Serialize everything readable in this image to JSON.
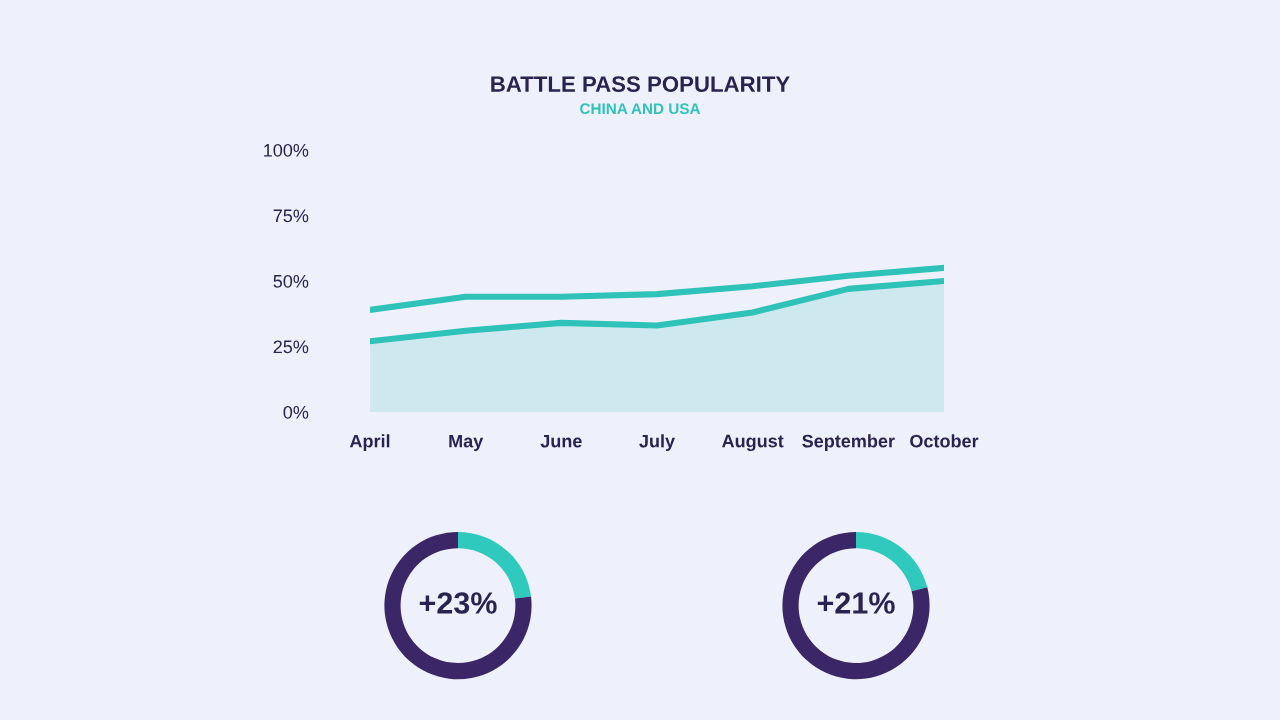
{
  "chart_data": [
    {
      "type": "line",
      "title": "BATTLE PASS POPULARITY",
      "subtitle": "CHINA AND USA",
      "categories": [
        "April",
        "May",
        "June",
        "July",
        "August",
        "September",
        "October"
      ],
      "series": [
        {
          "type": "line",
          "color": "#2fc2b8",
          "values": [
            39,
            44,
            44,
            45,
            48,
            52,
            55
          ]
        },
        {
          "type": "area",
          "color": "#2fc2b8",
          "values": [
            27,
            31,
            34,
            33,
            38,
            47,
            50
          ]
        }
      ],
      "ylim": [
        0,
        100
      ],
      "yticks": [
        {
          "value": 0,
          "label": "0%"
        },
        {
          "value": 25,
          "label": "25%"
        },
        {
          "value": 50,
          "label": "50%"
        },
        {
          "value": 75,
          "label": "75%"
        },
        {
          "value": 100,
          "label": "100%"
        }
      ],
      "grid": false,
      "legend": false
    },
    {
      "type": "donut",
      "categories": [
        null,
        null
      ],
      "values": [
        23,
        77
      ],
      "colors": [
        "#2fc9be",
        "#3b2768"
      ],
      "annotations": [
        "+23%"
      ]
    },
    {
      "type": "donut",
      "categories": [
        null,
        null
      ],
      "values": [
        21,
        79
      ],
      "colors": [
        "#2fc9be",
        "#3b2768"
      ],
      "annotations": [
        "+21%"
      ]
    }
  ]
}
